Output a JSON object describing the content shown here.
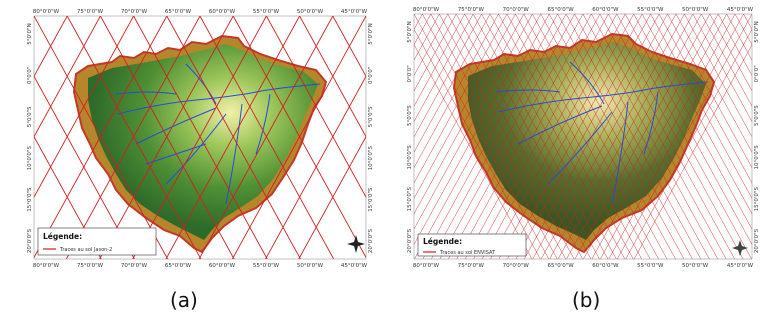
{
  "figure": {
    "panels": [
      {
        "id": "a",
        "caption": "(a)",
        "top_ticks": [
          "80°0'0\"W",
          "75°0'0\"W",
          "70°0'0\"W",
          "65°0'0\"W",
          "60°0'0\"W",
          "55°0'0\"W",
          "50°0'0\"W",
          "45°0'0\"W"
        ],
        "bottom_ticks": [
          "80°0'0\"W",
          "75°0'0\"W",
          "70°0'0\"W",
          "65°0'0\"W",
          "60°0'0\"W",
          "55°0'0\"W",
          "50°0'0\"W",
          "45°0'0\"W"
        ],
        "left_ticks": [
          "5°0'0\"N",
          "0°0'0\"",
          "5°0'0\"S",
          "10°0'0\"S",
          "15°0'0\"S",
          "20°0'0\"S"
        ],
        "right_ticks": [
          "5°0'0\"N",
          "0°0'0\"",
          "5°0'0\"S",
          "10°0'0\"S",
          "15°0'0\"S",
          "20°0'0\"S"
        ],
        "legend_title": "Légende:",
        "legend_item": "Traces au sol Jason-2",
        "track_color": "#cc2222",
        "track_count": 10
      },
      {
        "id": "b",
        "caption": "(b)",
        "top_ticks": [
          "80°0'0\"W",
          "75°0'0\"W",
          "70°0'0\"W",
          "65°0'0\"W",
          "60°0'0\"W",
          "55°0'0\"W",
          "50°0'0\"W",
          "45°0'0\"W"
        ],
        "bottom_ticks": [
          "80°0'0\"W",
          "75°0'0\"W",
          "70°0'0\"W",
          "65°0'0\"W",
          "60°0'0\"W",
          "55°0'0\"W",
          "50°0'0\"W",
          "45°0'0\"W"
        ],
        "left_ticks": [
          "5°0'0\"N",
          "0°0'0\"",
          "5°0'0\"S",
          "10°0'0\"S",
          "15°0'0\"S",
          "20°0'0\"S"
        ],
        "right_ticks": [
          "5°0'0\"N",
          "0°0'0\"",
          "5°0'0\"S",
          "10°0'0\"S",
          "15°0'0\"S",
          "20°0'0\"S"
        ],
        "legend_title": "Légende:",
        "legend_item": "Traces au sol ENVISAT",
        "track_color": "#cc2222",
        "track_count": 40
      }
    ],
    "colors": {
      "terrain_low": "#e8e89a",
      "terrain_mid": "#5a9a3a",
      "terrain_high": "#2d6b2a",
      "andes": "#b8862a",
      "andes_peak": "#c0392b",
      "rivers": "#1f4fd6"
    },
    "icons": [
      "compass-rose-icon"
    ]
  }
}
